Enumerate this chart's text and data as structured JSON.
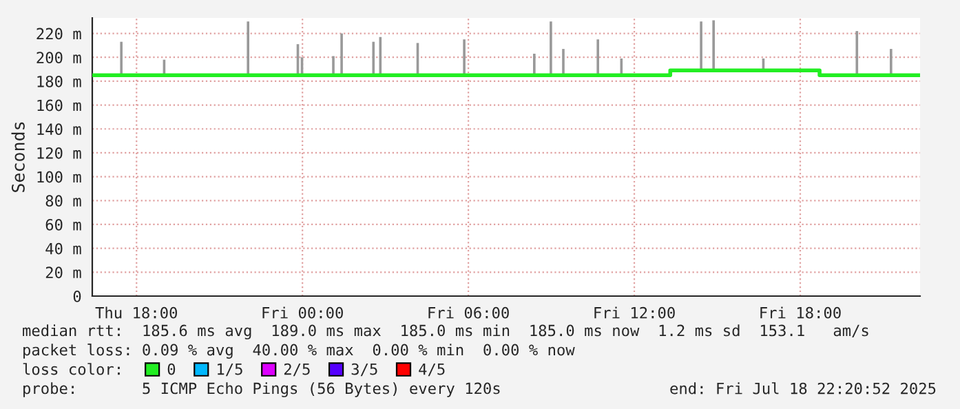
{
  "chart_data": {
    "type": "line",
    "ylabel": "Seconds",
    "xlim": [
      "2025-07-17T16:24",
      "2025-07-18T22:20"
    ],
    "ylim": [
      0,
      233
    ],
    "xticks": [
      {
        "value": "2025-07-17T18:00",
        "label": "Thu 18:00"
      },
      {
        "value": "2025-07-18T00:00",
        "label": "Fri 00:00"
      },
      {
        "value": "2025-07-18T06:00",
        "label": "Fri 06:00"
      },
      {
        "value": "2025-07-18T12:00",
        "label": "Fri 12:00"
      },
      {
        "value": "2025-07-18T18:00",
        "label": "Fri 18:00"
      }
    ],
    "yticks": [
      0,
      {
        "value": 20,
        "label": "20 m"
      },
      {
        "value": 40,
        "label": "40 m"
      },
      {
        "value": 60,
        "label": "60 m"
      },
      {
        "value": 80,
        "label": "80 m"
      },
      {
        "value": 100,
        "label": "100 m"
      },
      {
        "value": 120,
        "label": "120 m"
      },
      {
        "value": 140,
        "label": "140 m"
      },
      {
        "value": 160,
        "label": "160 m"
      },
      {
        "value": 180,
        "label": "180 m"
      },
      {
        "value": 200,
        "label": "200 m"
      },
      {
        "value": 220,
        "label": "220 m"
      }
    ],
    "grid": true,
    "legend": "bottom",
    "legend_title": "loss color:",
    "series": [
      {
        "type": "bar",
        "color": "#999999",
        "x": [
          "2025-07-17T17:27",
          "2025-07-17T19:00",
          "2025-07-17T22:02",
          "2025-07-17T23:50",
          "2025-07-17T23:59",
          "2025-07-18T01:07",
          "2025-07-18T01:25",
          "2025-07-18T02:34",
          "2025-07-18T02:49",
          "2025-07-18T04:10",
          "2025-07-18T05:51",
          "2025-07-18T08:23",
          "2025-07-18T08:59",
          "2025-07-18T09:26",
          "2025-07-18T10:41",
          "2025-07-18T11:32",
          "2025-07-18T14:25",
          "2025-07-18T14:52",
          "2025-07-18T16:40",
          "2025-07-18T20:03",
          "2025-07-18T21:17"
        ],
        "base": [
          185,
          185,
          185,
          185,
          185,
          185,
          185,
          185,
          185,
          185,
          185,
          185,
          185,
          185,
          185,
          185,
          189,
          189,
          189,
          185,
          185
        ],
        "values": [
          28,
          13,
          45,
          26,
          15,
          16,
          35,
          28,
          32,
          27,
          30,
          18,
          45,
          22,
          30,
          14,
          41,
          42,
          10,
          37,
          22
        ]
      },
      {
        "name": "0",
        "color": "#22ee22",
        "x": [
          "2025-07-17T16:24",
          "2025-07-18T13:18",
          "2025-07-18T13:18",
          "2025-07-18T18:42",
          "2025-07-18T18:42",
          "2025-07-18T22:20"
        ],
        "values": [
          185,
          185,
          189,
          189,
          185,
          185
        ]
      },
      {
        "name": "1/5",
        "color": "#00b8ff"
      },
      {
        "name": "2/5",
        "color": "#dd00ff"
      },
      {
        "name": "3/5",
        "color": "#5500ff"
      },
      {
        "name": "4/5",
        "color": "#ff0000"
      }
    ],
    "annotations": [
      "median rtt:  185.6 ms avg  189.0 ms max  185.0 ms min  185.0 ms now  1.2 ms sd  153.1   am/s",
      "packet loss: 0.09 % avg  40.00 % max  0.00 % min  0.00 % now",
      "probe:       5 ICMP Echo Pings (56 Bytes) every 120s",
      "end: Fri Jul 18 22:20:52 2025"
    ]
  }
}
